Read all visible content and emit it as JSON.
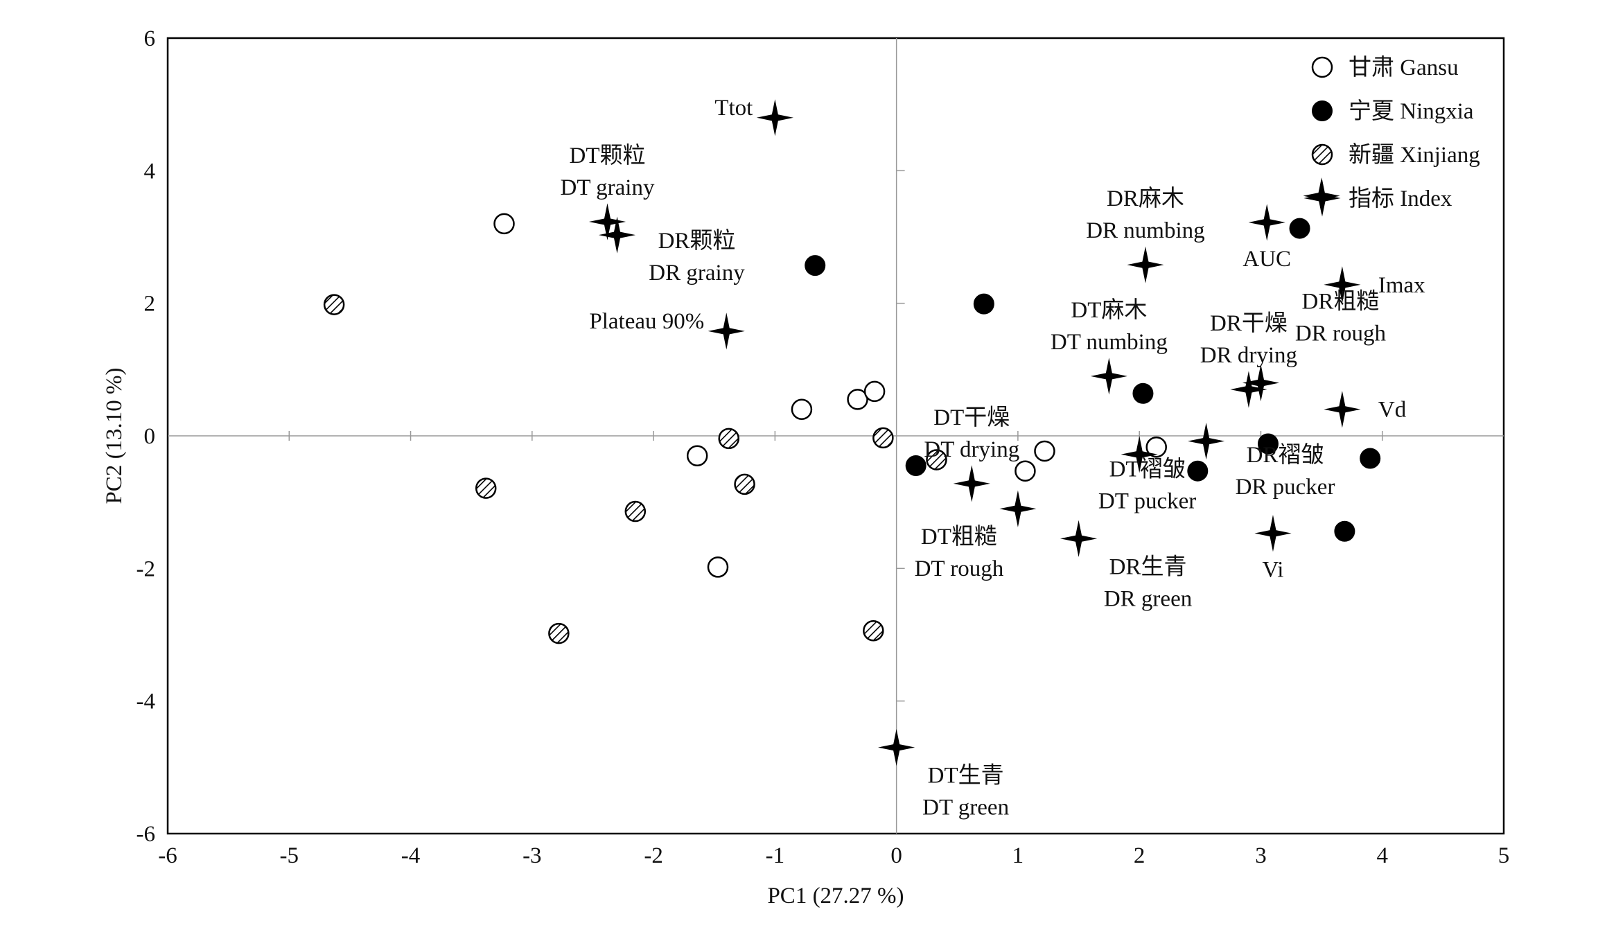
{
  "chart_data": {
    "type": "scatter",
    "title": "",
    "xlabel": "PC1 (27.27 %)",
    "ylabel": "PC2 (13.10 %)",
    "xlim": [
      -6,
      5
    ],
    "ylim": [
      -6,
      6
    ],
    "xticks": [
      "-6",
      "-5",
      "-4",
      "-3",
      "-2",
      "-1",
      "0",
      "1",
      "2",
      "3",
      "4",
      "5"
    ],
    "yticks": [
      "6",
      "4",
      "2",
      "0",
      "-2",
      "-4",
      "-6"
    ],
    "reference_lines": {
      "x": 0,
      "y": 0
    },
    "grid": false,
    "legend_position": "top-right",
    "series": [
      {
        "name": "甘肃 Gansu",
        "marker": "open-circle",
        "points": [
          {
            "x": -3.23,
            "y": 3.2
          },
          {
            "x": -0.78,
            "y": 0.4
          },
          {
            "x": -0.32,
            "y": 0.55
          },
          {
            "x": -0.18,
            "y": 0.67
          },
          {
            "x": -1.64,
            "y": -0.3
          },
          {
            "x": -1.47,
            "y": -1.98
          },
          {
            "x": 1.06,
            "y": -0.53
          },
          {
            "x": 1.22,
            "y": -0.23
          },
          {
            "x": 2.14,
            "y": -0.17
          }
        ]
      },
      {
        "name": "宁夏 Ningxia",
        "marker": "filled-circle",
        "points": [
          {
            "x": -0.67,
            "y": 2.57
          },
          {
            "x": 0.72,
            "y": 1.99
          },
          {
            "x": 0.16,
            "y": -0.45
          },
          {
            "x": 2.03,
            "y": 0.64
          },
          {
            "x": 2.48,
            "y": -0.53
          },
          {
            "x": 3.06,
            "y": -0.12
          },
          {
            "x": 3.32,
            "y": 3.13
          },
          {
            "x": 3.9,
            "y": -0.34
          },
          {
            "x": 3.69,
            "y": -1.44
          }
        ]
      },
      {
        "name": "新疆 Xinjiang",
        "marker": "hatched-circle",
        "points": [
          {
            "x": -4.63,
            "y": 1.98
          },
          {
            "x": -3.38,
            "y": -0.79
          },
          {
            "x": -2.78,
            "y": -2.98
          },
          {
            "x": -2.15,
            "y": -1.14
          },
          {
            "x": -1.38,
            "y": -0.04
          },
          {
            "x": -1.25,
            "y": -0.73
          },
          {
            "x": -0.19,
            "y": -2.94
          },
          {
            "x": -0.11,
            "y": -0.03
          },
          {
            "x": 0.33,
            "y": -0.36
          }
        ]
      },
      {
        "name": "指标 Index",
        "marker": "four-point-star",
        "points": [
          {
            "x": -1.0,
            "y": 4.8,
            "label": [
              "Ttot"
            ],
            "label_pos": "left"
          },
          {
            "x": -2.38,
            "y": 3.23,
            "label": [
              "DT颗粒",
              "DT grainy"
            ],
            "label_pos": "above"
          },
          {
            "x": -2.3,
            "y": 3.03,
            "label": [
              "DR颗粒",
              "DR grainy"
            ],
            "label_pos": "right-below"
          },
          {
            "x": -1.4,
            "y": 1.58,
            "label": [
              "Plateau 90%"
            ],
            "label_pos": "left"
          },
          {
            "x": 2.05,
            "y": 2.58,
            "label": [
              "DR麻木",
              "DR numbing"
            ],
            "label_pos": "above"
          },
          {
            "x": 1.75,
            "y": 0.9,
            "label": [
              "DT麻木",
              "DT numbing"
            ],
            "label_pos": "above"
          },
          {
            "x": 3.05,
            "y": 3.22,
            "label": [
              "AUC"
            ],
            "label_pos": "below"
          },
          {
            "x": 3.5,
            "y": 3.62
          },
          {
            "x": 3.67,
            "y": 2.28,
            "label": [
              "Imax"
            ],
            "label_pos": "right"
          },
          {
            "x": 2.9,
            "y": 0.7,
            "label": [
              "DR干燥",
              "DR drying"
            ],
            "label_pos": "above"
          },
          {
            "x": 3.0,
            "y": 0.8,
            "label": [
              "DR粗糙",
              "DR rough"
            ],
            "label_pos": "above-right"
          },
          {
            "x": 3.67,
            "y": 0.4,
            "label": [
              "Vd"
            ],
            "label_pos": "right"
          },
          {
            "x": 2.55,
            "y": -0.08,
            "label": [
              "DT褶皱",
              "DT pucker"
            ],
            "label_pos": "below-left"
          },
          {
            "x": 2.0,
            "y": -0.28
          },
          {
            "x": 3.1,
            "y": -1.47,
            "label": [
              "Vi"
            ],
            "label_pos": "below"
          },
          {
            "x": 0.62,
            "y": -0.72,
            "label": [
              "DT干燥",
              "DT drying"
            ],
            "label_pos": "above"
          },
          {
            "x": 1.0,
            "y": -1.1,
            "label": [
              "DT粗糙",
              "DT rough"
            ],
            "label_pos": "below-left"
          },
          {
            "x": 1.5,
            "y": -1.55,
            "label": [
              "DR生青",
              "DR green"
            ],
            "label_pos": "below-right"
          },
          {
            "x": 0.0,
            "y": -4.7,
            "label": [
              "DT生青",
              "DT green"
            ],
            "label_pos": "below-right"
          }
        ]
      }
    ],
    "extra_labels": [
      {
        "lines": [
          "DR褶皱",
          "DR pucker"
        ],
        "x": 3.2,
        "y": -0.7
      }
    ]
  }
}
